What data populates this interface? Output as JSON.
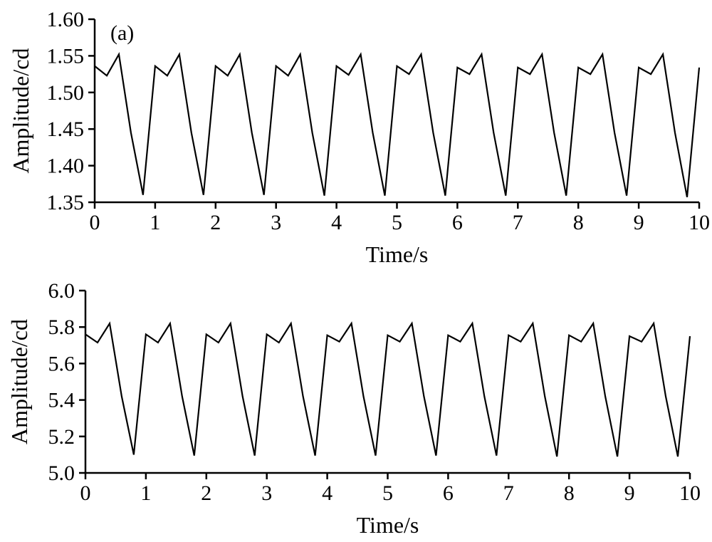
{
  "chart_data": [
    {
      "type": "line",
      "panel_label": "(a)",
      "xlabel": "Time/s",
      "ylabel": "Amplitude/cd",
      "xlim": [
        0,
        10
      ],
      "ylim": [
        1.35,
        1.6
      ],
      "xticks": [
        "0",
        "1",
        "2",
        "3",
        "4",
        "5",
        "6",
        "7",
        "8",
        "9",
        "10"
      ],
      "yticks": [
        "1.35",
        "1.40",
        "1.45",
        "1.50",
        "1.55",
        "1.60"
      ],
      "grid": false,
      "series": [
        {
          "x": [
            0,
            0.2,
            0.4,
            0.6,
            0.8,
            1.0,
            1.2,
            1.4,
            1.6,
            1.8,
            2.0,
            2.2,
            2.4,
            2.6,
            2.8,
            3.0,
            3.2,
            3.4,
            3.6,
            3.8,
            4.0,
            4.2,
            4.4,
            4.6,
            4.8,
            5.0,
            5.2,
            5.4,
            5.6,
            5.8,
            6.0,
            6.2,
            6.4,
            6.6,
            6.8,
            7.0,
            7.2,
            7.4,
            7.6,
            7.8,
            8.0,
            8.2,
            8.4,
            8.6,
            8.8,
            9.0,
            9.2,
            9.4,
            9.6,
            9.8,
            10.0
          ],
          "values": [
            1.536,
            1.523,
            1.552,
            1.445,
            1.36,
            1.536,
            1.523,
            1.552,
            1.445,
            1.36,
            1.536,
            1.523,
            1.552,
            1.445,
            1.36,
            1.536,
            1.523,
            1.552,
            1.445,
            1.359,
            1.536,
            1.524,
            1.552,
            1.445,
            1.359,
            1.536,
            1.525,
            1.552,
            1.445,
            1.359,
            1.534,
            1.525,
            1.552,
            1.445,
            1.359,
            1.534,
            1.525,
            1.552,
            1.445,
            1.359,
            1.534,
            1.525,
            1.552,
            1.445,
            1.359,
            1.534,
            1.525,
            1.552,
            1.445,
            1.357,
            1.534
          ]
        }
      ]
    },
    {
      "type": "line",
      "xlabel": "Time/s",
      "ylabel": "Amplitude/cd",
      "xlim": [
        0,
        10
      ],
      "ylim": [
        5.0,
        6.0
      ],
      "xticks": [
        "0",
        "1",
        "2",
        "3",
        "4",
        "5",
        "6",
        "7",
        "8",
        "9",
        "10"
      ],
      "yticks": [
        "5.0",
        "5.2",
        "5.4",
        "5.6",
        "5.8",
        "6.0"
      ],
      "grid": false,
      "series": [
        {
          "x": [
            0,
            0.2,
            0.4,
            0.6,
            0.8,
            1.0,
            1.2,
            1.4,
            1.6,
            1.8,
            2.0,
            2.2,
            2.4,
            2.6,
            2.8,
            3.0,
            3.2,
            3.4,
            3.6,
            3.8,
            4.0,
            4.2,
            4.4,
            4.6,
            4.8,
            5.0,
            5.2,
            5.4,
            5.6,
            5.8,
            6.0,
            6.2,
            6.4,
            6.6,
            6.8,
            7.0,
            7.2,
            7.4,
            7.6,
            7.8,
            8.0,
            8.2,
            8.4,
            8.6,
            8.8,
            9.0,
            9.2,
            9.4,
            9.6,
            9.8,
            10.0
          ],
          "values": [
            5.76,
            5.715,
            5.82,
            5.42,
            5.1,
            5.76,
            5.715,
            5.82,
            5.42,
            5.095,
            5.76,
            5.715,
            5.82,
            5.42,
            5.095,
            5.76,
            5.715,
            5.82,
            5.42,
            5.095,
            5.755,
            5.72,
            5.82,
            5.42,
            5.095,
            5.755,
            5.72,
            5.82,
            5.42,
            5.095,
            5.755,
            5.72,
            5.82,
            5.42,
            5.095,
            5.755,
            5.72,
            5.82,
            5.42,
            5.09,
            5.755,
            5.72,
            5.82,
            5.42,
            5.09,
            5.75,
            5.72,
            5.82,
            5.42,
            5.09,
            5.75
          ]
        }
      ]
    }
  ]
}
